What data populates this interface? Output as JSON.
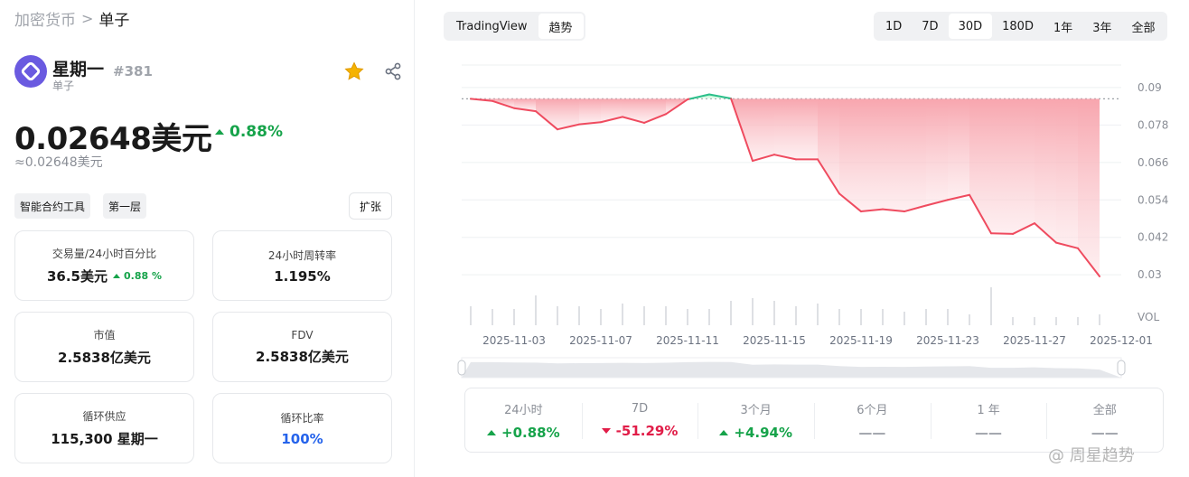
{
  "breadcrumb": {
    "home": "加密货币",
    "separator": ">",
    "current": "单子"
  },
  "coin": {
    "name": "星期一",
    "rank": "#381",
    "tag": "单子",
    "price": "0.02648美元",
    "change": "0.88%",
    "approx": "≈0.02648美元",
    "logo_color": "#6a5ae0"
  },
  "tags": [
    "智能合约工具",
    "第一层"
  ],
  "expand_label": "扩张",
  "cards": {
    "volume": {
      "label": "交易量/24小时百分比",
      "value": "36.5美元",
      "sub": "0.88 %"
    },
    "turnover": {
      "label": "24小时周转率",
      "value": "1.195%"
    },
    "market_cap": {
      "label": "市值",
      "value": "2.5838亿美元"
    },
    "fdv": {
      "label": "FDV",
      "value": "2.5838亿美元"
    },
    "circulating": {
      "label": "循环供应",
      "value": "115,300 星期一"
    },
    "circ_ratio": {
      "label": "循环比率",
      "value": "100%"
    }
  },
  "chart_tabs": [
    "TradingView",
    "趋势"
  ],
  "ranges": [
    "1D",
    "7D",
    "30D",
    "180D",
    "1年",
    "3年",
    "全部"
  ],
  "active_range": "30D",
  "stats": [
    {
      "label": "24小时",
      "value": "+0.88%",
      "dir": "up"
    },
    {
      "label": "7D",
      "value": "-51.29%",
      "dir": "down"
    },
    {
      "label": "3个月",
      "value": "+4.94%",
      "dir": "up"
    },
    {
      "label": "6个月",
      "value": "——",
      "dir": "none"
    },
    {
      "label": "1 年",
      "value": "——",
      "dir": "none"
    },
    {
      "label": "全部",
      "value": "——",
      "dir": "none"
    }
  ],
  "watermark": "@ 周星趋势",
  "colors": {
    "up": "#16a34a",
    "down": "#e11d48",
    "accent_blue": "#2563eb",
    "star": "#f5b301"
  },
  "chart_data": {
    "type": "area",
    "x_tick_labels": [
      "2025-11-03",
      "2025-11-07",
      "2025-11-11",
      "2025-11-15",
      "2025-11-19",
      "2025-11-23",
      "2025-11-27",
      "2025-12-01"
    ],
    "y_tick_labels": [
      "0.09",
      "0.078",
      "0.066",
      "0.054",
      "0.042",
      "0.03"
    ],
    "volume_label": "VOL",
    "ylim": [
      0.026,
      0.092
    ],
    "baseline": 0.0864,
    "x_range": [
      "2025-11-01",
      "2025-12-01"
    ],
    "series": [
      {
        "x": [
          "2025-11-01",
          "2025-11-02",
          "2025-11-03",
          "2025-11-04",
          "2025-11-05",
          "2025-11-06",
          "2025-11-07",
          "2025-11-08",
          "2025-11-09",
          "2025-11-10",
          "2025-11-11",
          "2025-11-12",
          "2025-11-13",
          "2025-11-14",
          "2025-11-15",
          "2025-11-16",
          "2025-11-17",
          "2025-11-18",
          "2025-11-19",
          "2025-11-20",
          "2025-11-21",
          "2025-11-22",
          "2025-11-23",
          "2025-11-24",
          "2025-11-25",
          "2025-11-26",
          "2025-11-27",
          "2025-11-28",
          "2025-11-29",
          "2025-11-30"
        ],
        "values": [
          0.0864,
          0.0857,
          0.0834,
          0.0824,
          0.0766,
          0.0782,
          0.0789,
          0.0806,
          0.0787,
          0.0815,
          0.0862,
          0.0878,
          0.0865,
          0.0665,
          0.0685,
          0.067,
          0.067,
          0.056,
          0.0503,
          0.051,
          0.0503,
          0.0522,
          0.054,
          0.0556,
          0.0433,
          0.0431,
          0.0465,
          0.0403,
          0.0385,
          0.0295
        ],
        "volumes": [
          0.35,
          0.3,
          0.3,
          0.55,
          0.35,
          0.35,
          0.3,
          0.4,
          0.35,
          0.35,
          0.3,
          0.3,
          0.45,
          0.5,
          0.45,
          0.35,
          0.4,
          0.3,
          0.3,
          0.3,
          0.25,
          0.3,
          0.3,
          0.2,
          0.7,
          0.15,
          0.15,
          0.15,
          0.15,
          0.2
        ]
      }
    ]
  }
}
